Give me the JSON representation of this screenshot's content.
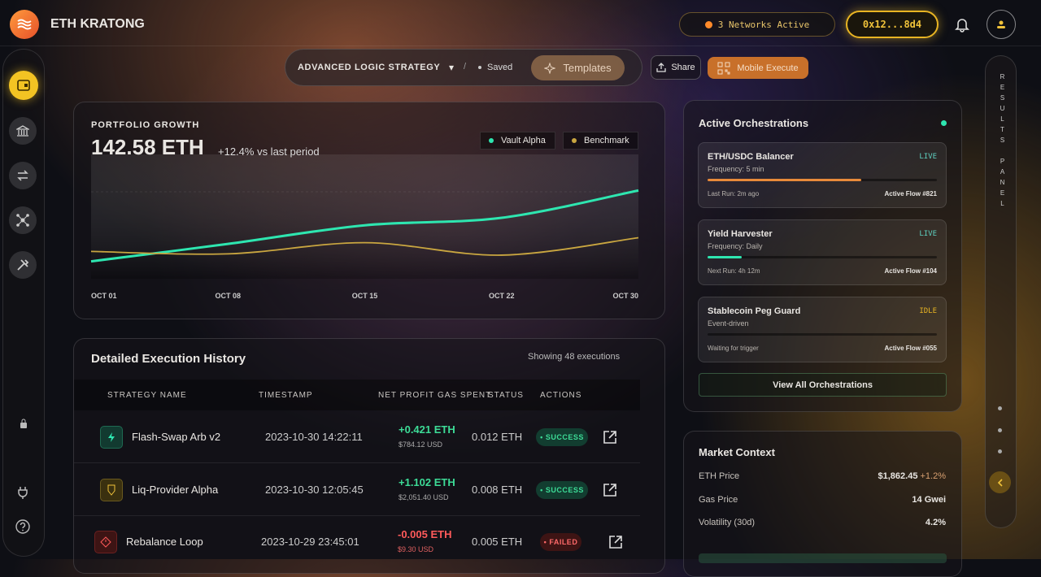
{
  "header": {
    "brand": "ETH KRATONG",
    "networks": "3 Networks Active",
    "wallet": "0x12...8d4"
  },
  "toolbar": {
    "strategy": "ADVANCED LOGIC STRATEGY",
    "caret": "▾",
    "separator": "/",
    "saved": "Saved",
    "templates": "Templates",
    "share": "Share",
    "mobile": "Mobile Execute"
  },
  "results_panel": "RESULTS PANEL",
  "chart_data": {
    "type": "line",
    "title": "PORTFOLIO GROWTH",
    "value": "142.58 ETH",
    "change": "+12.4% vs last period",
    "categories": [
      "OCT 01",
      "OCT 08",
      "OCT 15",
      "OCT 22",
      "OCT 30"
    ],
    "series": [
      {
        "name": "Vault Alpha",
        "color": "#2ee6b0",
        "values": [
          14,
          28,
          43,
          49,
          71
        ]
      },
      {
        "name": "Benchmark",
        "color": "#c9a640",
        "values": [
          22,
          20,
          29,
          19,
          33
        ]
      }
    ],
    "ylim": [
      0,
      100
    ]
  },
  "history": {
    "title": "Detailed Execution History",
    "count": "Showing 48 executions",
    "columns": [
      "STRATEGY NAME",
      "TIMESTAMP",
      "NET PROFIT",
      "GAS SPENT",
      "STATUS",
      "ACTIONS"
    ],
    "rows": [
      {
        "name": "Flash-Swap Arb v2",
        "timestamp": "2023-10-30 14:22:11",
        "profit": "+0.421 ETH",
        "usd": "$784.12 USD",
        "gas": "0.012 ETH",
        "status": "SUCCESS"
      },
      {
        "name": "Liq-Provider Alpha",
        "timestamp": "2023-10-30 12:05:45",
        "profit": "+1.102 ETH",
        "usd": "$2,051.40 USD",
        "gas": "0.008 ETH",
        "status": "SUCCESS"
      },
      {
        "name": "Rebalance Loop",
        "timestamp": "2023-10-29 23:45:01",
        "profit": "-0.005 ETH",
        "usd": "$9.30 USD",
        "gas": "0.005 ETH",
        "status": "FAILED"
      }
    ]
  },
  "orchestrations": {
    "title": "Active Orchestrations",
    "items": [
      {
        "name": "ETH/USDC Balancer",
        "status": "LIVE",
        "frequency": "Frequency: 5 min",
        "progress": 67,
        "run": "Last Run: 2m ago",
        "flow": "Active Flow #821"
      },
      {
        "name": "Yield Harvester",
        "status": "LIVE",
        "frequency": "Frequency: Daily",
        "progress": 15,
        "run": "Next Run: 4h 12m",
        "flow": "Active Flow #104"
      },
      {
        "name": "Stablecoin Peg Guard",
        "status": "IDLE",
        "frequency": "Event-driven",
        "progress": 0,
        "run": "Waiting for trigger",
        "flow": "Active Flow #055"
      }
    ],
    "button": "View All Orchestrations"
  },
  "market": {
    "title": "Market Context",
    "rows": [
      {
        "label": "ETH Price",
        "value": "$1,862.45",
        "change": "+1.2%"
      },
      {
        "label": "Gas Price",
        "value": "14 Gwei"
      },
      {
        "label": "Volatility (30d)",
        "value": "4.2%"
      }
    ]
  }
}
